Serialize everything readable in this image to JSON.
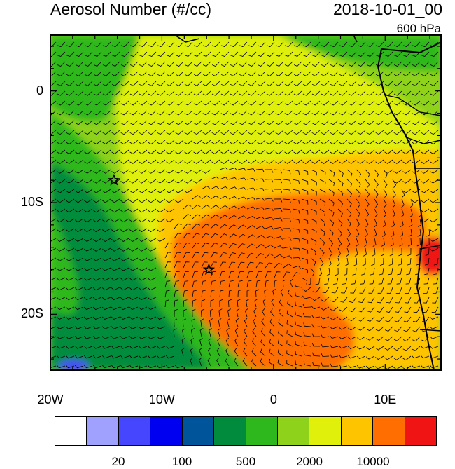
{
  "title_left": "Aerosol Number (#/cc)",
  "title_right": "2018-10-01_00",
  "level": "600 hPa",
  "axes": {
    "lon_ticks": [
      "20W",
      "10W",
      "0",
      "10E"
    ],
    "lat_ticks": [
      "0",
      "10S",
      "20S"
    ],
    "lon_range": [
      -20,
      15
    ],
    "lat_range": [
      -25,
      5
    ]
  },
  "colorbar": {
    "colors": [
      "#ffffff",
      "#a0a0ff",
      "#4646ff",
      "#0000f0",
      "#00549a",
      "#008c3c",
      "#2fb81e",
      "#8ed21c",
      "#e0f00a",
      "#ffc400",
      "#ff6e00",
      "#f01414"
    ],
    "labels": [
      "20",
      "100",
      "500",
      "2000",
      "10000"
    ]
  },
  "markers": [
    {
      "name": "star-marker",
      "lon": -14.3,
      "lat": -8.0
    },
    {
      "name": "star-marker",
      "lon": -5.8,
      "lat": -16.0
    }
  ]
}
